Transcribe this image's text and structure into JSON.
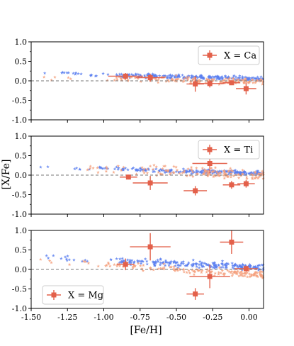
{
  "figure": {
    "shared_xlabel": "[Fe/H]",
    "shared_ylabel": "[X/Fe]"
  },
  "colors": {
    "blue_stars": "#5b7ff0",
    "orange_stars": "#f4a07c",
    "measurement": "#e3604a",
    "zero_line": "#777777"
  },
  "chart_data": [
    {
      "type": "scatter",
      "panel": "Ca",
      "legend": {
        "label": "X = Ca",
        "position": "top-right"
      },
      "xlim": [
        -1.5,
        0.1
      ],
      "ylim": [
        -1.0,
        1.0
      ],
      "xticks": [
        "-1.50",
        "-1.25",
        "-1.00",
        "-0.75",
        "-0.50",
        "-0.25",
        "0.00"
      ],
      "yticks": [
        "1.0",
        "0.5",
        "0.0",
        "-0.5",
        "-1.0"
      ],
      "zero_line": 0.0,
      "measurements": [
        {
          "x": -0.85,
          "y": 0.12,
          "xerr": 0.12,
          "yerr": 0.08
        },
        {
          "x": -0.68,
          "y": 0.08,
          "xerr": 0.1,
          "yerr": 0.1
        },
        {
          "x": -0.37,
          "y": -0.08,
          "xerr": 0.06,
          "yerr": 0.2
        },
        {
          "x": -0.27,
          "y": -0.07,
          "xerr": 0.1,
          "yerr": 0.1
        },
        {
          "x": -0.12,
          "y": -0.05,
          "xerr": 0.06,
          "yerr": 0.06
        },
        {
          "x": -0.02,
          "y": -0.2,
          "xerr": 0.07,
          "yerr": 0.15
        }
      ]
    },
    {
      "type": "scatter",
      "panel": "Ti",
      "legend": {
        "label": "X = Ti",
        "position": "top-right"
      },
      "xlim": [
        -1.5,
        0.1
      ],
      "ylim": [
        -1.0,
        1.0
      ],
      "xticks": [
        "-1.50",
        "-1.25",
        "-1.00",
        "-0.75",
        "-0.50",
        "-0.25",
        "0.00"
      ],
      "yticks": [
        "1.0",
        "0.5",
        "0.0",
        "-0.5",
        "-1.0"
      ],
      "zero_line": 0.0,
      "measurements": [
        {
          "x": -0.83,
          "y": -0.05,
          "xerr": 0.06,
          "yerr": 0.06
        },
        {
          "x": -0.68,
          "y": -0.2,
          "xerr": 0.12,
          "yerr": 0.18
        },
        {
          "x": -0.37,
          "y": -0.4,
          "xerr": 0.08,
          "yerr": 0.12
        },
        {
          "x": -0.27,
          "y": 0.3,
          "xerr": 0.12,
          "yerr": 0.25
        },
        {
          "x": -0.12,
          "y": -0.25,
          "xerr": 0.06,
          "yerr": 0.1
        },
        {
          "x": -0.02,
          "y": -0.22,
          "xerr": 0.06,
          "yerr": 0.1
        }
      ]
    },
    {
      "type": "scatter",
      "panel": "Mg",
      "legend": {
        "label": "X = Mg",
        "position": "bottom-left"
      },
      "xlim": [
        -1.5,
        0.1
      ],
      "ylim": [
        -1.0,
        1.0
      ],
      "xticks": [
        "-1.50",
        "-1.25",
        "-1.00",
        "-0.75",
        "-0.50",
        "-0.25",
        "0.00"
      ],
      "yticks": [
        "1.0",
        "0.5",
        "0.0",
        "-0.5",
        "-1.0"
      ],
      "zero_line": 0.0,
      "measurements": [
        {
          "x": -0.85,
          "y": 0.13,
          "xerr": 0.06,
          "yerr": 0.15
        },
        {
          "x": -0.68,
          "y": 0.58,
          "xerr": 0.14,
          "yerr": 0.35
        },
        {
          "x": -0.37,
          "y": -0.63,
          "xerr": 0.06,
          "yerr": 0.15
        },
        {
          "x": -0.27,
          "y": -0.18,
          "xerr": 0.14,
          "yerr": 0.3
        },
        {
          "x": -0.12,
          "y": 0.7,
          "xerr": 0.08,
          "yerr": 0.3
        },
        {
          "x": -0.02,
          "y": 0.02,
          "xerr": 0.08,
          "yerr": 0.08
        }
      ]
    }
  ]
}
